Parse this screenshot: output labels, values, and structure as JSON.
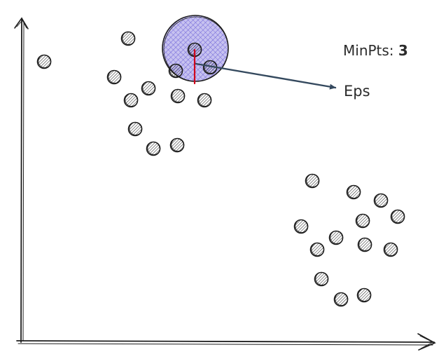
{
  "annotations": {
    "minpts_label": "MinPts:",
    "minpts_value": "3",
    "eps_label": "Eps"
  },
  "colors": {
    "ink": "#1e1e1e",
    "hatch": "#2b2b2b",
    "neighborhood_fill": "#c7c2f0",
    "neighborhood_hatch": "#6a5fd6",
    "radius_line": "#d0021b",
    "arrow": "#34495e"
  }
}
